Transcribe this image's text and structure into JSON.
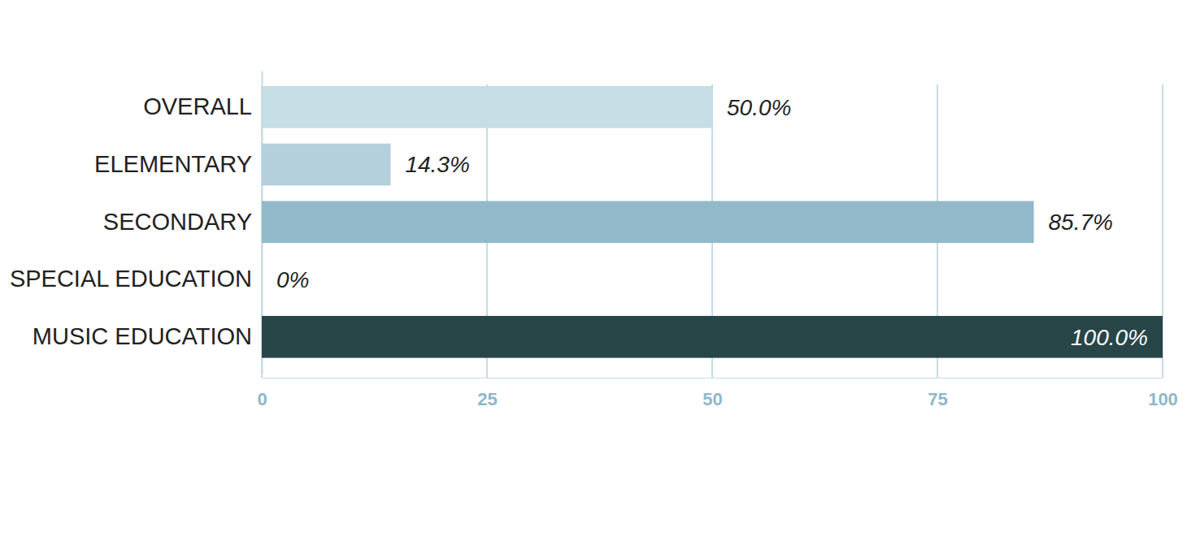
{
  "chart_data": {
    "type": "bar",
    "orientation": "horizontal",
    "categories": [
      "OVERALL",
      "ELEMENTARY",
      "SECONDARY",
      "SPECIAL EDUCATION",
      "MUSIC EDUCATION"
    ],
    "values": [
      50.0,
      14.3,
      85.7,
      0,
      100.0
    ],
    "value_labels": [
      "50.0%",
      "14.3%",
      "85.7%",
      "0%",
      "100.0%"
    ],
    "colors": [
      "#c5dde4",
      "#b3d0dc",
      "#91b9ca",
      "#a8c8d6",
      "#284548"
    ],
    "xlim": [
      0,
      100
    ],
    "xticks": [
      0,
      25,
      50,
      75,
      100
    ],
    "grid": true,
    "data_labels": true
  }
}
